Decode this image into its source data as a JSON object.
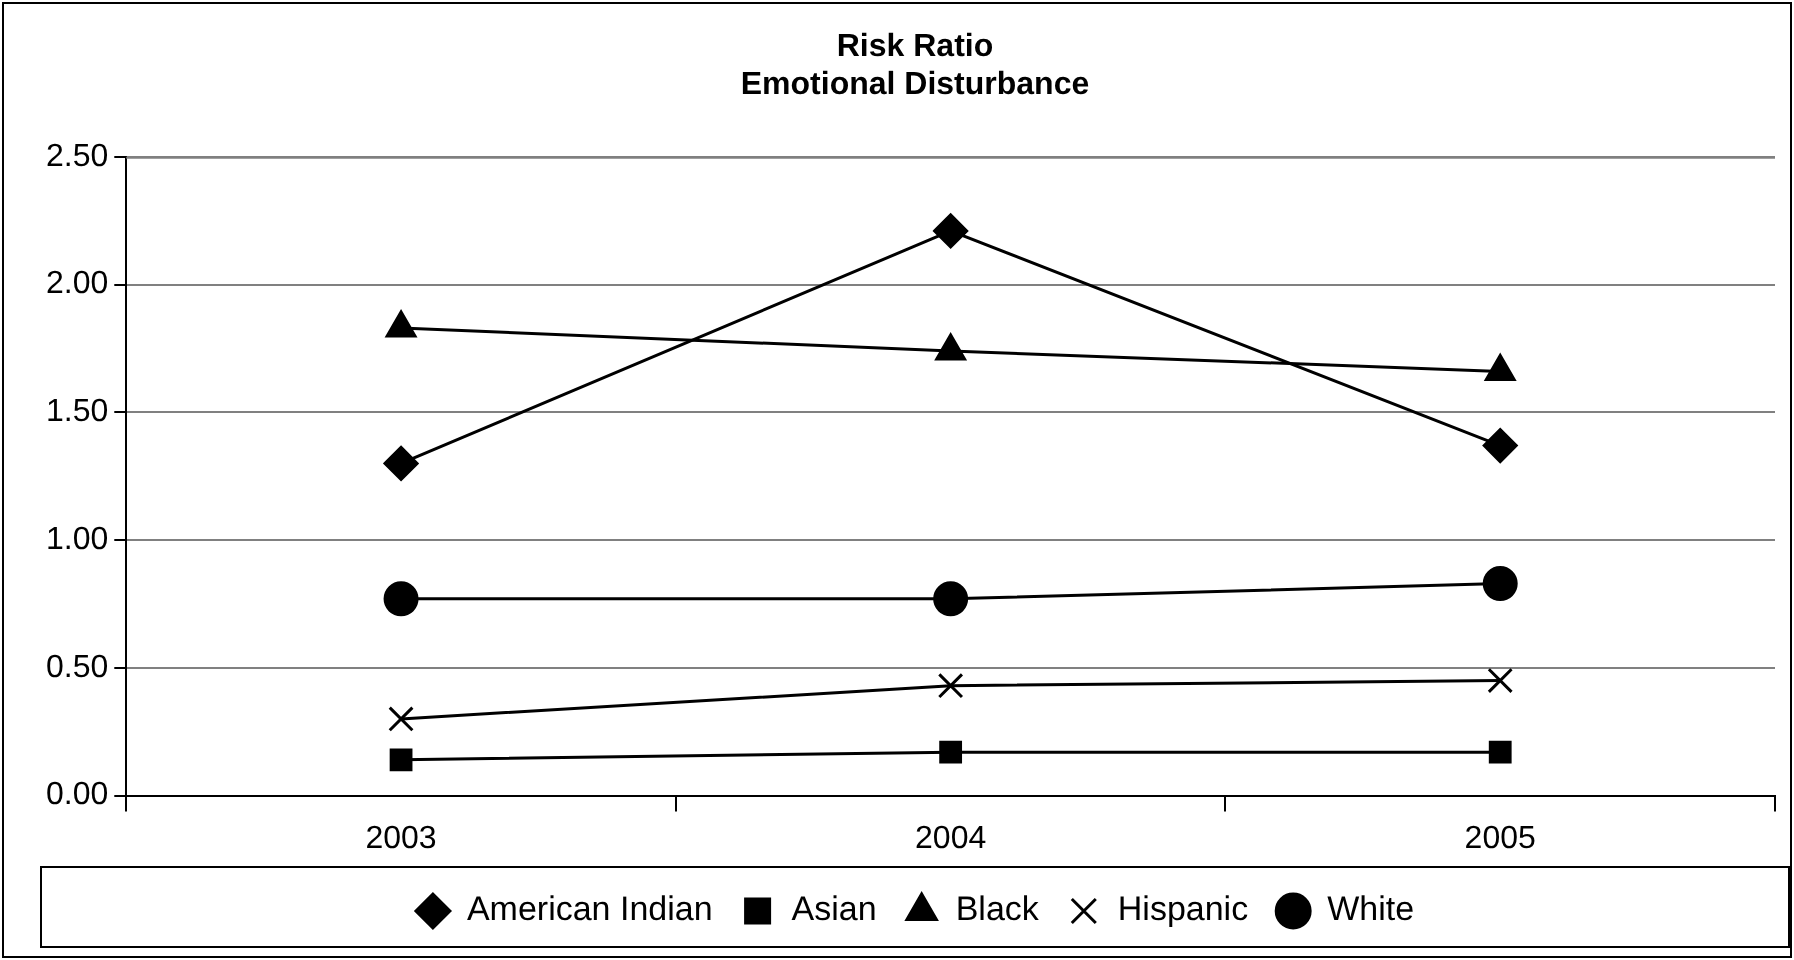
{
  "chart_data": {
    "type": "line",
    "title": "Risk Ratio\nEmotional Disturbance",
    "categories": [
      "2003",
      "2004",
      "2005"
    ],
    "series": [
      {
        "name": "American Indian",
        "color": "#000000",
        "marker": "diamond",
        "values": [
          1.3,
          2.21,
          1.37
        ]
      },
      {
        "name": "Asian",
        "color": "#000000",
        "marker": "square",
        "values": [
          0.14,
          0.17,
          0.17
        ]
      },
      {
        "name": "Black",
        "color": "#000000",
        "marker": "triangle",
        "values": [
          1.83,
          1.74,
          1.66
        ]
      },
      {
        "name": "Hispanic",
        "color": "#000000",
        "marker": "cross",
        "values": [
          0.3,
          0.43,
          0.45
        ]
      },
      {
        "name": "White",
        "color": "#000000",
        "marker": "circle",
        "values": [
          0.77,
          0.77,
          0.83
        ]
      }
    ],
    "ylim": [
      0,
      2.5
    ],
    "yticks": [
      {
        "value": 0,
        "label": "0.00"
      },
      {
        "value": 0.5,
        "label": "0.50"
      },
      {
        "value": 1,
        "label": "1.00"
      },
      {
        "value": 1.5,
        "label": "1.50"
      },
      {
        "value": 2,
        "label": "2.00"
      },
      {
        "value": 2.5,
        "label": "2.50"
      }
    ],
    "grid": "y",
    "legend": "bottom",
    "line_style": "solid"
  }
}
